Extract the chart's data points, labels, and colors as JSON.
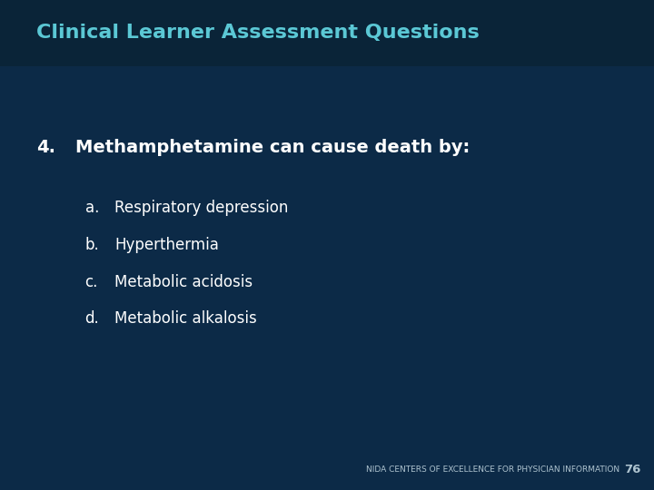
{
  "background_color": "#0c2a47",
  "title": "Clinical Learner Assessment Questions",
  "title_color": "#5bc8d5",
  "title_fontsize": 16,
  "title_bold": true,
  "question_number": "4.",
  "question_text": "Methamphetamine can cause death by:",
  "question_color": "#ffffff",
  "question_fontsize": 14,
  "question_bold": true,
  "options": [
    {
      "label": "a.",
      "text": "Respiratory depression"
    },
    {
      "label": "b.",
      "text": "Hyperthermia"
    },
    {
      "label": "c.",
      "text": "Metabolic acidosis"
    },
    {
      "label": "d.",
      "text": "Metabolic alkalosis"
    }
  ],
  "option_color": "#ffffff",
  "option_fontsize": 12,
  "footer_text": "NIDA CENTERS OF EXCELLENCE FOR PHYSICIAN INFORMATION",
  "footer_page": "76",
  "footer_color": "#afc4d0",
  "footer_fontsize": 6.5,
  "title_bar_color": "#0a2438",
  "title_bar_height": 0.135
}
